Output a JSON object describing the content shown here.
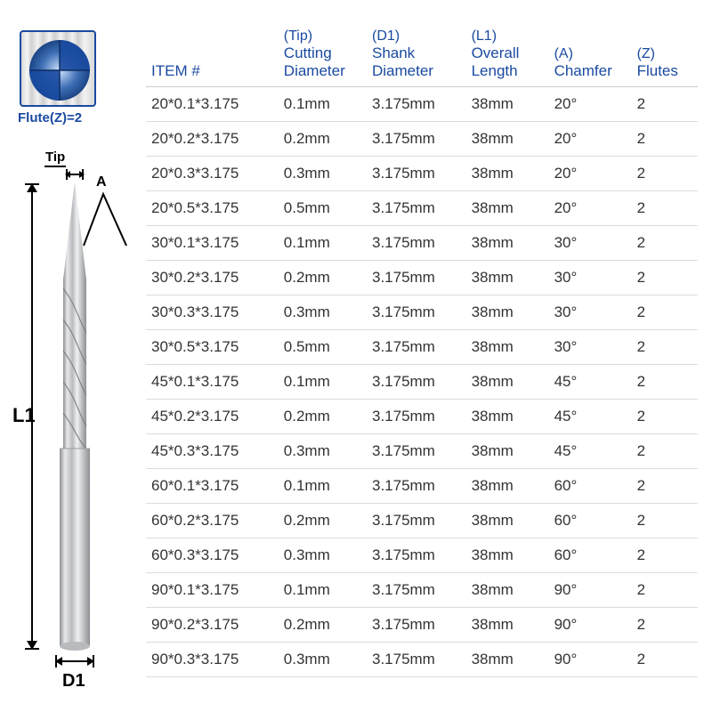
{
  "colors": {
    "accent": "#1a4aa0",
    "text": "#333333",
    "rule": "#dcdcdc",
    "header_rule": "#c9c9c9",
    "background": "#ffffff",
    "bit_light": "#e9e9ea",
    "bit_mid": "#b8bbbe",
    "bit_dark": "#8d9094"
  },
  "flute_swatch": {
    "label": "Flute(Z)=2"
  },
  "diagram": {
    "tip_label": "Tip",
    "angle_label": "A",
    "L1_label": "L1",
    "D1_label": "D1"
  },
  "table": {
    "columns": [
      {
        "sup": "",
        "main": "ITEM #"
      },
      {
        "sup": "(Tip)",
        "main": "Cutting Diameter"
      },
      {
        "sup": "(D1)",
        "main": "Shank Diameter"
      },
      {
        "sup": "(L1)",
        "main": "Overall Length"
      },
      {
        "sup": "(A)",
        "main": "Chamfer"
      },
      {
        "sup": "(Z)",
        "main": "Flutes"
      }
    ],
    "rows": [
      [
        "20*0.1*3.175",
        "0.1mm",
        "3.175mm",
        "38mm",
        "20°",
        "2"
      ],
      [
        "20*0.2*3.175",
        "0.2mm",
        "3.175mm",
        "38mm",
        "20°",
        "2"
      ],
      [
        "20*0.3*3.175",
        "0.3mm",
        "3.175mm",
        "38mm",
        "20°",
        "2"
      ],
      [
        "20*0.5*3.175",
        "0.5mm",
        "3.175mm",
        "38mm",
        "20°",
        "2"
      ],
      [
        "30*0.1*3.175",
        "0.1mm",
        "3.175mm",
        "38mm",
        "30°",
        "2"
      ],
      [
        "30*0.2*3.175",
        "0.2mm",
        "3.175mm",
        "38mm",
        "30°",
        "2"
      ],
      [
        "30*0.3*3.175",
        "0.3mm",
        "3.175mm",
        "38mm",
        "30°",
        "2"
      ],
      [
        "30*0.5*3.175",
        "0.5mm",
        "3.175mm",
        "38mm",
        "30°",
        "2"
      ],
      [
        "45*0.1*3.175",
        "0.1mm",
        "3.175mm",
        "38mm",
        "45°",
        "2"
      ],
      [
        "45*0.2*3.175",
        "0.2mm",
        "3.175mm",
        "38mm",
        "45°",
        "2"
      ],
      [
        "45*0.3*3.175",
        "0.3mm",
        "3.175mm",
        "38mm",
        "45°",
        "2"
      ],
      [
        "60*0.1*3.175",
        "0.1mm",
        "3.175mm",
        "38mm",
        "60°",
        "2"
      ],
      [
        "60*0.2*3.175",
        "0.2mm",
        "3.175mm",
        "38mm",
        "60°",
        "2"
      ],
      [
        "60*0.3*3.175",
        "0.3mm",
        "3.175mm",
        "38mm",
        "60°",
        "2"
      ],
      [
        "90*0.1*3.175",
        "0.1mm",
        "3.175mm",
        "38mm",
        "90°",
        "2"
      ],
      [
        "90*0.2*3.175",
        "0.2mm",
        "3.175mm",
        "38mm",
        "90°",
        "2"
      ],
      [
        "90*0.3*3.175",
        "0.3mm",
        "3.175mm",
        "38mm",
        "90°",
        "2"
      ]
    ]
  }
}
